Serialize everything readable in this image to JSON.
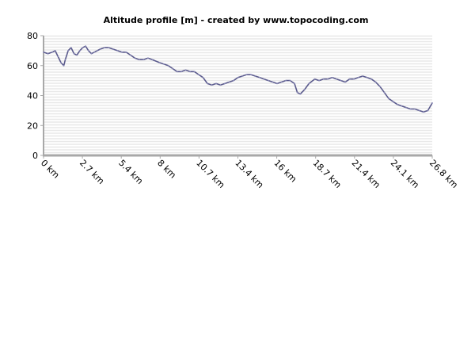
{
  "chart_data": {
    "type": "line",
    "title": "Altitude profile [m] - created by www.topocoding.com",
    "xlabel": "",
    "ylabel": "",
    "x_unit": "km",
    "xlim": [
      0,
      26.8
    ],
    "ylim": [
      0,
      80
    ],
    "x_ticks": [
      "0 km",
      "2.7 km",
      "5.4 km",
      "8 km",
      "10.7 km",
      "13.4 km",
      "16 km",
      "18.7 km",
      "21.4 km",
      "24.1 km",
      "26.8 km"
    ],
    "y_ticks": [
      "0",
      "20",
      "40",
      "60",
      "80"
    ],
    "grid": true,
    "legend": "none",
    "colors": {
      "line": "#5a5a8c",
      "band": "#e8e8e8",
      "axis": "#a8a8a8"
    },
    "series": [
      {
        "x": [
          0,
          0.3,
          0.6,
          0.8,
          1.0,
          1.2,
          1.4,
          1.5,
          1.7,
          1.9,
          2.1,
          2.3,
          2.5,
          2.7,
          2.9,
          3.1,
          3.3,
          3.5,
          3.7,
          3.9,
          4.2,
          4.5,
          4.8,
          5.1,
          5.4,
          5.7,
          6.0,
          6.3,
          6.6,
          6.9,
          7.2,
          7.5,
          8.0,
          8.3,
          8.6,
          8.9,
          9.2,
          9.5,
          9.8,
          10.1,
          10.4,
          10.7,
          11.0,
          11.3,
          11.6,
          11.9,
          12.2,
          12.5,
          12.8,
          13.1,
          13.4,
          13.7,
          14.0,
          14.3,
          14.6,
          14.9,
          15.2,
          15.5,
          15.8,
          16.1,
          16.4,
          16.7,
          17.0,
          17.3,
          17.5,
          17.7,
          18.0,
          18.3,
          18.7,
          19.0,
          19.3,
          19.6,
          19.9,
          20.2,
          20.5,
          20.8,
          21.1,
          21.4,
          21.7,
          22.0,
          22.3,
          22.6,
          22.9,
          23.2,
          23.5,
          23.8,
          24.1,
          24.4,
          24.7,
          25.0,
          25.3,
          25.6,
          25.9,
          26.2,
          26.5,
          26.8
        ],
        "values": [
          69,
          68,
          69,
          70,
          66,
          62,
          60,
          64,
          70,
          72,
          68,
          67,
          70,
          72,
          73,
          70,
          68,
          69,
          70,
          71,
          72,
          72,
          71,
          70,
          69,
          69,
          67,
          65,
          64,
          64,
          65,
          64,
          62,
          61,
          60,
          58,
          56,
          56,
          57,
          56,
          56,
          54,
          52,
          48,
          47,
          48,
          47,
          48,
          49,
          50,
          52,
          53,
          54,
          54,
          53,
          52,
          51,
          50,
          49,
          48,
          49,
          50,
          50,
          48,
          42,
          41,
          44,
          48,
          51,
          50,
          51,
          51,
          52,
          51,
          50,
          49,
          51,
          51,
          52,
          53,
          52,
          51,
          49,
          46,
          42,
          38,
          36,
          34,
          33,
          32,
          31,
          31,
          30,
          29,
          30,
          35
        ]
      }
    ]
  }
}
